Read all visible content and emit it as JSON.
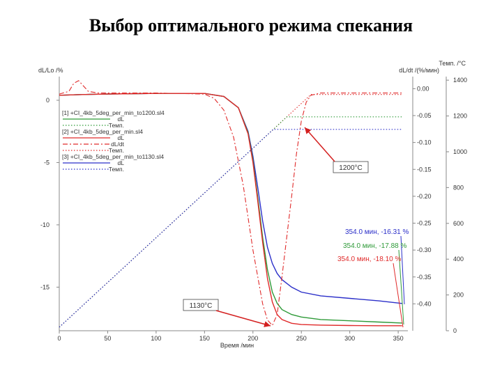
{
  "slide_title": "Выбор оптимального режима спекания",
  "chart_data": {
    "type": "line",
    "xlabel": "Время /мин",
    "x_ticks": [
      "0",
      "50",
      "100",
      "150",
      "200",
      "250",
      "300",
      "350"
    ],
    "xlim": [
      0,
      360
    ],
    "left_axis": {
      "label": "dL/Lo /%",
      "ticks": [
        "0",
        "-5",
        "-10",
        "-15"
      ],
      "ylim": [
        -18.5,
        1.9
      ]
    },
    "right_axis_1": {
      "label": "dL/dt /(%/мин)",
      "ticks": [
        "0.00",
        "-0.05",
        "-0.10",
        "-0.15",
        "-0.20",
        "-0.25",
        "-0.30",
        "-0.35",
        "-0.40"
      ],
      "ylim": [
        -0.45,
        0.0225
      ]
    },
    "right_axis_2": {
      "label": "Темп. /°C",
      "ticks": [
        "1400",
        "1200",
        "1000",
        "800",
        "600",
        "400",
        "200",
        "0"
      ],
      "ylim": [
        0,
        1420
      ]
    },
    "legend": [
      {
        "file": "[1] +CI_4kb_5deg_per_min_to1200.sl4",
        "items": [
          "dL",
          "Темп."
        ],
        "color": "#2e9a38"
      },
      {
        "file": "[2] +CI_4kb_5deg_per_min.sl4",
        "items": [
          "dL",
          "dL/dt",
          "Темп."
        ],
        "color": "#e02a2a"
      },
      {
        "file": "[3] +CI_4kb_5deg_per_min_to1130.sl4",
        "items": [
          "dL",
          "Темп."
        ],
        "color": "#2b2fc9"
      }
    ],
    "series": [
      {
        "name": "[3] dL",
        "color": "#2b2fc9",
        "style": "solid",
        "axis": "left",
        "x": [
          0,
          20,
          50,
          100,
          150,
          170,
          185,
          195,
          200,
          205,
          210,
          215,
          220,
          225,
          230,
          240,
          250,
          270,
          300,
          330,
          354
        ],
        "y": [
          0.4,
          0.45,
          0.5,
          0.55,
          0.55,
          0.3,
          -0.6,
          -2.5,
          -4.5,
          -7,
          -9.7,
          -11.8,
          -13.1,
          -13.9,
          -14.4,
          -15.0,
          -15.4,
          -15.7,
          -15.9,
          -16.1,
          -16.31
        ]
      },
      {
        "name": "[1] dL",
        "color": "#2e9a38",
        "style": "solid",
        "axis": "left",
        "x": [
          0,
          20,
          50,
          100,
          150,
          170,
          185,
          195,
          200,
          205,
          210,
          215,
          220,
          225,
          230,
          240,
          250,
          270,
          300,
          330,
          354
        ],
        "y": [
          0.4,
          0.45,
          0.5,
          0.55,
          0.55,
          0.3,
          -0.6,
          -2.6,
          -4.8,
          -7.8,
          -11.0,
          -13.6,
          -15.4,
          -16.3,
          -16.8,
          -17.2,
          -17.4,
          -17.6,
          -17.7,
          -17.8,
          -17.88
        ]
      },
      {
        "name": "[2] dL",
        "color": "#e02a2a",
        "style": "solid",
        "axis": "left",
        "x": [
          0,
          20,
          50,
          100,
          150,
          170,
          185,
          195,
          200,
          205,
          210,
          215,
          220,
          225,
          230,
          240,
          250,
          270,
          300,
          330,
          354
        ],
        "y": [
          0.4,
          0.45,
          0.5,
          0.55,
          0.55,
          0.3,
          -0.6,
          -2.7,
          -5.0,
          -8.1,
          -11.4,
          -14.3,
          -16.2,
          -17.2,
          -17.6,
          -17.9,
          -18.0,
          -18.05,
          -18.08,
          -18.1,
          -18.1
        ]
      },
      {
        "name": "[2] dL/dt",
        "color": "#e02a2a",
        "style": "dashdot",
        "axis": "right1",
        "x": [
          0,
          10,
          15,
          20,
          25,
          30,
          40,
          100,
          150,
          160,
          170,
          180,
          190,
          200,
          210,
          215,
          220,
          225,
          230,
          240,
          245,
          250,
          255,
          260,
          270,
          300,
          354
        ],
        "y": [
          -0.01,
          -0.005,
          0.01,
          0.015,
          0.005,
          -0.005,
          -0.008,
          -0.008,
          -0.01,
          -0.018,
          -0.04,
          -0.09,
          -0.18,
          -0.3,
          -0.4,
          -0.43,
          -0.44,
          -0.42,
          -0.35,
          -0.2,
          -0.12,
          -0.06,
          -0.025,
          -0.012,
          -0.008,
          -0.008,
          -0.008
        ]
      },
      {
        "name": "[2] Темп.",
        "color": "#e02a2a",
        "style": "dotted",
        "axis": "right2",
        "x": [
          0,
          260,
          354
        ],
        "y": [
          20,
          1320,
          1320
        ]
      },
      {
        "name": "[1] Темп.",
        "color": "#2e9a38",
        "style": "dotted",
        "axis": "right2",
        "x": [
          0,
          235,
          354
        ],
        "y": [
          20,
          1195,
          1195
        ]
      },
      {
        "name": "[3] Темп.",
        "color": "#2b2fc9",
        "style": "dotted",
        "axis": "right2",
        "x": [
          0,
          221,
          354
        ],
        "y": [
          20,
          1125,
          1125
        ]
      }
    ],
    "annotations": [
      {
        "text": "1200°C",
        "color": "#333333"
      },
      {
        "text": "1130°C",
        "color": "#333333"
      },
      {
        "text": "354.0 мин, -16.31 %",
        "color": "#2b2fc9"
      },
      {
        "text": "354.0 мин, -17.88 %",
        "color": "#2e9a38"
      },
      {
        "text": "354.0 мин, -18.10 %",
        "color": "#e02a2a"
      }
    ],
    "grid": false
  }
}
